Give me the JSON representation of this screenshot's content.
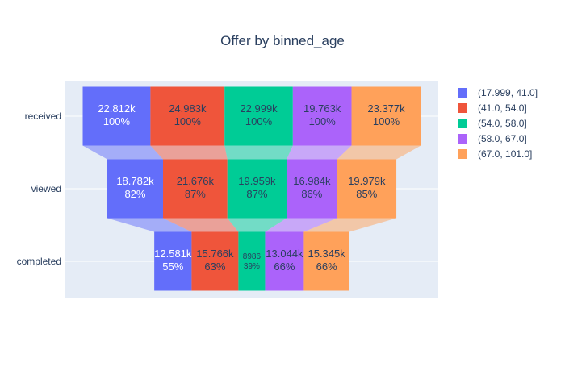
{
  "chart_data": {
    "type": "funnel",
    "title": "Offer by binned_age",
    "stages": [
      "received",
      "viewed",
      "completed"
    ],
    "series": [
      {
        "name": "(17.999, 41.0]",
        "color": "#636efa",
        "values": [
          22812,
          18782,
          12581
        ],
        "labels": [
          "22.812k",
          "18.782k",
          "12.581k"
        ],
        "percents": [
          "100%",
          "82%",
          "55%"
        ]
      },
      {
        "name": "(41.0, 54.0]",
        "color": "#ef553b",
        "values": [
          24983,
          21676,
          15766
        ],
        "labels": [
          "24.983k",
          "21.676k",
          "15.766k"
        ],
        "percents": [
          "100%",
          "87%",
          "63%"
        ]
      },
      {
        "name": "(54.0, 58.0]",
        "color": "#00cc96",
        "values": [
          22999,
          19959,
          8986
        ],
        "labels": [
          "22.999k",
          "19.959k",
          "8986"
        ],
        "percents": [
          "100%",
          "87%",
          "39%"
        ]
      },
      {
        "name": "(58.0, 67.0]",
        "color": "#ab63fa",
        "values": [
          19763,
          16984,
          13044
        ],
        "labels": [
          "19.763k",
          "16.984k",
          "13.044k"
        ],
        "percents": [
          "100%",
          "86%",
          "66%"
        ]
      },
      {
        "name": "(67.0, 101.0]",
        "color": "#ffa15a",
        "values": [
          23377,
          19979,
          15345
        ],
        "labels": [
          "23.377k",
          "19.979k",
          "15.345k"
        ],
        "percents": [
          "100%",
          "85%",
          "66%"
        ]
      }
    ],
    "legend_position": "right",
    "background": "#e5ecf6",
    "grid": true
  }
}
